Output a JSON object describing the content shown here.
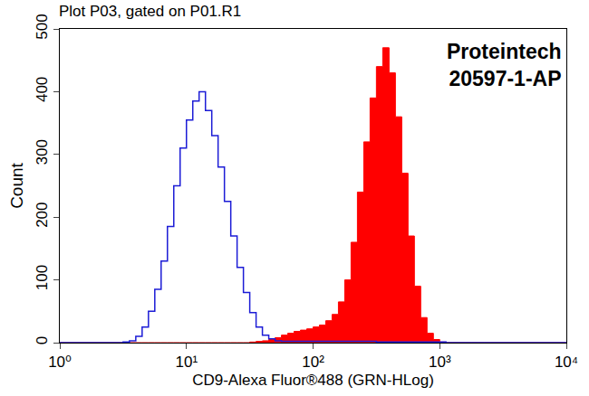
{
  "chart_data": {
    "type": "histogram",
    "title": "Plot P03, gated on P01.R1",
    "annotations": [
      "Proteintech",
      "20597-1-AP"
    ],
    "x_label": "CD9-Alexa Fluor®488 (GRN-HLog)",
    "y_label": "Count",
    "log": "x",
    "grid": false,
    "xlim": [
      1,
      10000
    ],
    "xticks": [
      {
        "value": 1,
        "label": "10⁰"
      },
      {
        "value": 10,
        "label": "10¹"
      },
      {
        "value": 100,
        "label": "10²"
      },
      {
        "value": 1000,
        "label": "10³"
      },
      {
        "value": 10000,
        "label": "10⁴"
      }
    ],
    "ylim": [
      0,
      500
    ],
    "yticks": [
      0,
      100,
      200,
      300,
      400,
      500
    ],
    "bins": [
      1,
      1.122,
      1.259,
      1.413,
      1.585,
      1.778,
      1.995,
      2.239,
      2.512,
      2.818,
      3.162,
      3.548,
      3.981,
      4.467,
      5.012,
      5.623,
      6.31,
      7.079,
      7.943,
      8.913,
      10,
      11.22,
      12.59,
      14.13,
      15.85,
      17.78,
      19.95,
      22.39,
      25.12,
      28.18,
      31.62,
      35.48,
      39.81,
      44.67,
      50.12,
      56.23,
      63.1,
      70.79,
      79.43,
      89.13,
      100,
      112.2,
      125.9,
      141.3,
      158.5,
      177.8,
      199.5,
      223.9,
      251.2,
      281.8,
      316.2,
      354.8,
      398.1,
      446.7,
      501.2,
      562.3,
      631,
      707.9,
      794.3,
      891.3,
      1000,
      1122,
      1259,
      1413,
      1585,
      1778,
      1995,
      2239,
      2512,
      2818,
      3162,
      3548,
      3981,
      4467,
      5012,
      5623,
      6310,
      7079,
      7943,
      8913,
      10000
    ],
    "series": [
      {
        "type": "area",
        "color": "#ff0000",
        "values": [
          0,
          0,
          0,
          0,
          0,
          0,
          0,
          0,
          0,
          0,
          0,
          0,
          0,
          0,
          0,
          0,
          0,
          0,
          0,
          0,
          0,
          0,
          0,
          0,
          0,
          0,
          0,
          0,
          0,
          0,
          1,
          2,
          3,
          5,
          8,
          12,
          15,
          18,
          20,
          22,
          25,
          28,
          35,
          45,
          65,
          100,
          160,
          240,
          320,
          390,
          440,
          470,
          430,
          360,
          270,
          170,
          90,
          40,
          15,
          5,
          1,
          0,
          0,
          0,
          0,
          0,
          0,
          0,
          0,
          0,
          0,
          0,
          0,
          0,
          0,
          0,
          0,
          0,
          0,
          0
        ]
      },
      {
        "type": "line",
        "color": "#1c1cd6",
        "values": [
          0,
          0,
          0,
          0,
          0,
          0,
          0,
          0,
          0,
          0,
          1,
          3,
          10,
          25,
          50,
          85,
          130,
          185,
          250,
          310,
          355,
          385,
          400,
          370,
          330,
          280,
          225,
          170,
          120,
          80,
          48,
          25,
          12,
          6,
          3,
          2,
          2,
          2,
          2,
          2,
          2,
          2,
          2,
          2,
          2,
          2,
          2,
          2,
          2,
          2,
          1,
          1,
          1,
          1,
          1,
          1,
          1,
          1,
          1,
          1,
          1,
          0,
          0,
          0,
          0,
          0,
          0,
          0,
          0,
          0,
          0,
          0,
          0,
          0,
          0,
          0,
          0,
          0,
          0,
          0
        ]
      }
    ]
  }
}
